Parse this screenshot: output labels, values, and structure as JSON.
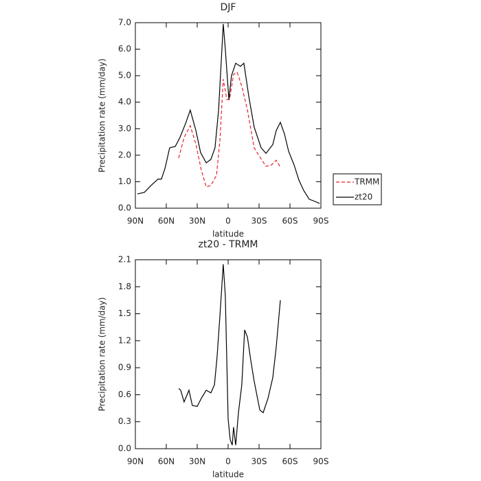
{
  "chart_data": [
    {
      "type": "line",
      "title": "DJF",
      "xlabel": "latitude",
      "ylabel": "Precipitation rate (mm/day)",
      "xlim": [
        90,
        -90
      ],
      "ylim": [
        0,
        7
      ],
      "xticks": [
        {
          "value": 90,
          "label": "90N"
        },
        {
          "value": 60,
          "label": "60N"
        },
        {
          "value": 30,
          "label": "30N"
        },
        0,
        {
          "value": -30,
          "label": "30S"
        },
        {
          "value": -60,
          "label": "60S"
        },
        {
          "value": -90,
          "label": "90S"
        }
      ],
      "yticks": [
        {
          "value": 0,
          "label": "0.0"
        },
        {
          "value": 1,
          "label": "1.0"
        },
        {
          "value": 2,
          "label": "2.0"
        },
        {
          "value": 3,
          "label": "3.0"
        },
        {
          "value": 4,
          "label": "4.0"
        },
        {
          "value": 5,
          "label": "5.0"
        },
        {
          "value": 6,
          "label": "6.0"
        },
        {
          "value": 7,
          "label": "7.0"
        }
      ],
      "legend": "right",
      "series": [
        {
          "name": "TRMM",
          "color": "#e8202a",
          "dash": true,
          "x": [
            48,
            42.7,
            36.7,
            31.3,
            26,
            21.3,
            16.7,
            11.3,
            8,
            4.7,
            1.3,
            -1.3,
            -5.3,
            -8.7,
            -13.3,
            -18.7,
            -25.3,
            -30.7,
            -36.7,
            -42,
            -46.7,
            -50.7
          ],
          "values": [
            1.89,
            2.67,
            3.11,
            2.41,
            1.43,
            0.8,
            0.86,
            1.24,
            2.54,
            4.87,
            4.1,
            4.1,
            5.05,
            5.13,
            4.6,
            3.7,
            2.28,
            1.94,
            1.58,
            1.63,
            1.81,
            1.55
          ]
        },
        {
          "name": "zt20",
          "color": "#000000",
          "dash": false,
          "x": [
            88,
            81.3,
            74.7,
            68,
            64.7,
            61.3,
            56.7,
            51.3,
            46.7,
            41.3,
            36.7,
            31.3,
            26.7,
            21.3,
            16.7,
            12.7,
            9.3,
            6.7,
            4.7,
            2.7,
            -0.7,
            -3.3,
            -7.3,
            -12,
            -15.3,
            -20,
            -25.3,
            -32,
            -36.7,
            -43.3,
            -46.7,
            -50.7,
            -54.7,
            -58.7,
            -64,
            -68.7,
            -73.3,
            -78.7,
            -84,
            -88.7
          ],
          "values": [
            0.54,
            0.6,
            0.86,
            1.1,
            1.1,
            1.5,
            2.28,
            2.33,
            2.67,
            3.2,
            3.7,
            2.93,
            2.1,
            1.71,
            1.84,
            2.28,
            3.7,
            5.5,
            6.95,
            6.0,
            4.1,
            5.0,
            5.47,
            5.35,
            5.47,
            4.23,
            3.06,
            2.28,
            2.07,
            2.4,
            2.93,
            3.24,
            2.8,
            2.15,
            1.63,
            1.06,
            0.67,
            0.34,
            0.26,
            0.18
          ]
        }
      ]
    },
    {
      "type": "line",
      "title": "zt20 - TRMM",
      "xlabel": "latitude",
      "ylabel": "Precipitation rate (mm/day)",
      "xlim": [
        90,
        -90
      ],
      "ylim": [
        0,
        2.1
      ],
      "xticks": [
        {
          "value": 90,
          "label": "90N"
        },
        {
          "value": 60,
          "label": "60N"
        },
        {
          "value": 30,
          "label": "30N"
        },
        0,
        {
          "value": -30,
          "label": "30S"
        },
        {
          "value": -60,
          "label": "60S"
        },
        {
          "value": -90,
          "label": "90S"
        }
      ],
      "yticks": [
        {
          "value": 0,
          "label": "0.0"
        },
        0.3,
        0.6,
        0.9,
        1.2,
        1.5,
        1.8,
        2.1
      ],
      "series": [
        {
          "color": "#000000",
          "dash": false,
          "x": [
            48,
            46,
            42.7,
            38,
            34.7,
            30,
            26,
            21.3,
            16.7,
            13.3,
            10.7,
            8,
            4.7,
            2.7,
            0,
            -2,
            -4,
            -5.3,
            -7.3,
            -10,
            -13.3,
            -16,
            -18.7,
            -22,
            -25.3,
            -30.7,
            -34,
            -38.7,
            -43.3,
            -46.7,
            -50.7
          ],
          "values": [
            0.67,
            0.65,
            0.52,
            0.65,
            0.48,
            0.47,
            0.56,
            0.65,
            0.62,
            0.71,
            1.02,
            1.47,
            2.05,
            1.7,
            0.33,
            0.1,
            0.04,
            0.24,
            0.04,
            0.4,
            0.71,
            1.32,
            1.24,
            0.98,
            0.75,
            0.43,
            0.4,
            0.56,
            0.79,
            1.13,
            1.65
          ]
        }
      ]
    }
  ]
}
